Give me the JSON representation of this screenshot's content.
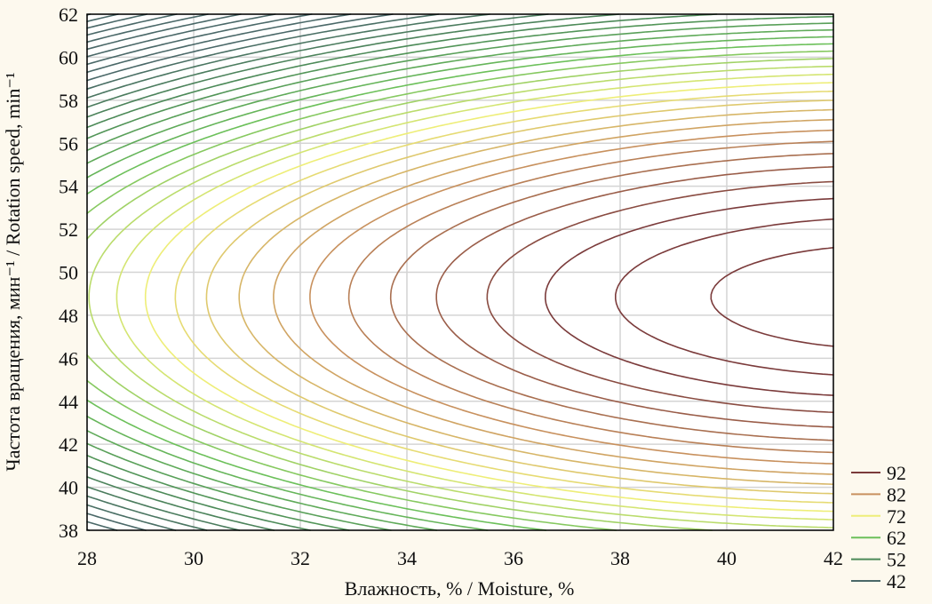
{
  "chart_data": {
    "type": "contour",
    "xlabel": "Влажность, % / Moisture, %",
    "ylabel": "Частота вращения, мин⁻¹ / Rotation speed, min⁻¹",
    "xlim": [
      28,
      42
    ],
    "ylim": [
      38,
      62
    ],
    "xticks": [
      "28",
      "30",
      "32",
      "34",
      "36",
      "38",
      "40",
      "42"
    ],
    "yticks": [
      "38",
      "40",
      "42",
      "44",
      "46",
      "48",
      "50",
      "52",
      "54",
      "56",
      "58",
      "60",
      "62"
    ],
    "grid": true,
    "legend_position": "bottom-right",
    "legend": [
      {
        "label": "92",
        "color": "#7b3b3b"
      },
      {
        "label": "82",
        "color": "#c8915e"
      },
      {
        "label": "72",
        "color": "#eeee78"
      },
      {
        "label": "62",
        "color": "#6cc05a"
      },
      {
        "label": "52",
        "color": "#4c8a58"
      },
      {
        "label": "42",
        "color": "#4a6868"
      }
    ],
    "contour_step": 2,
    "surface": {
      "form": "quadratic",
      "z_max": 97.5,
      "x_opt": 43.1,
      "y_opt": 48.85,
      "kx": 0.13,
      "ky": 0.255
    }
  }
}
